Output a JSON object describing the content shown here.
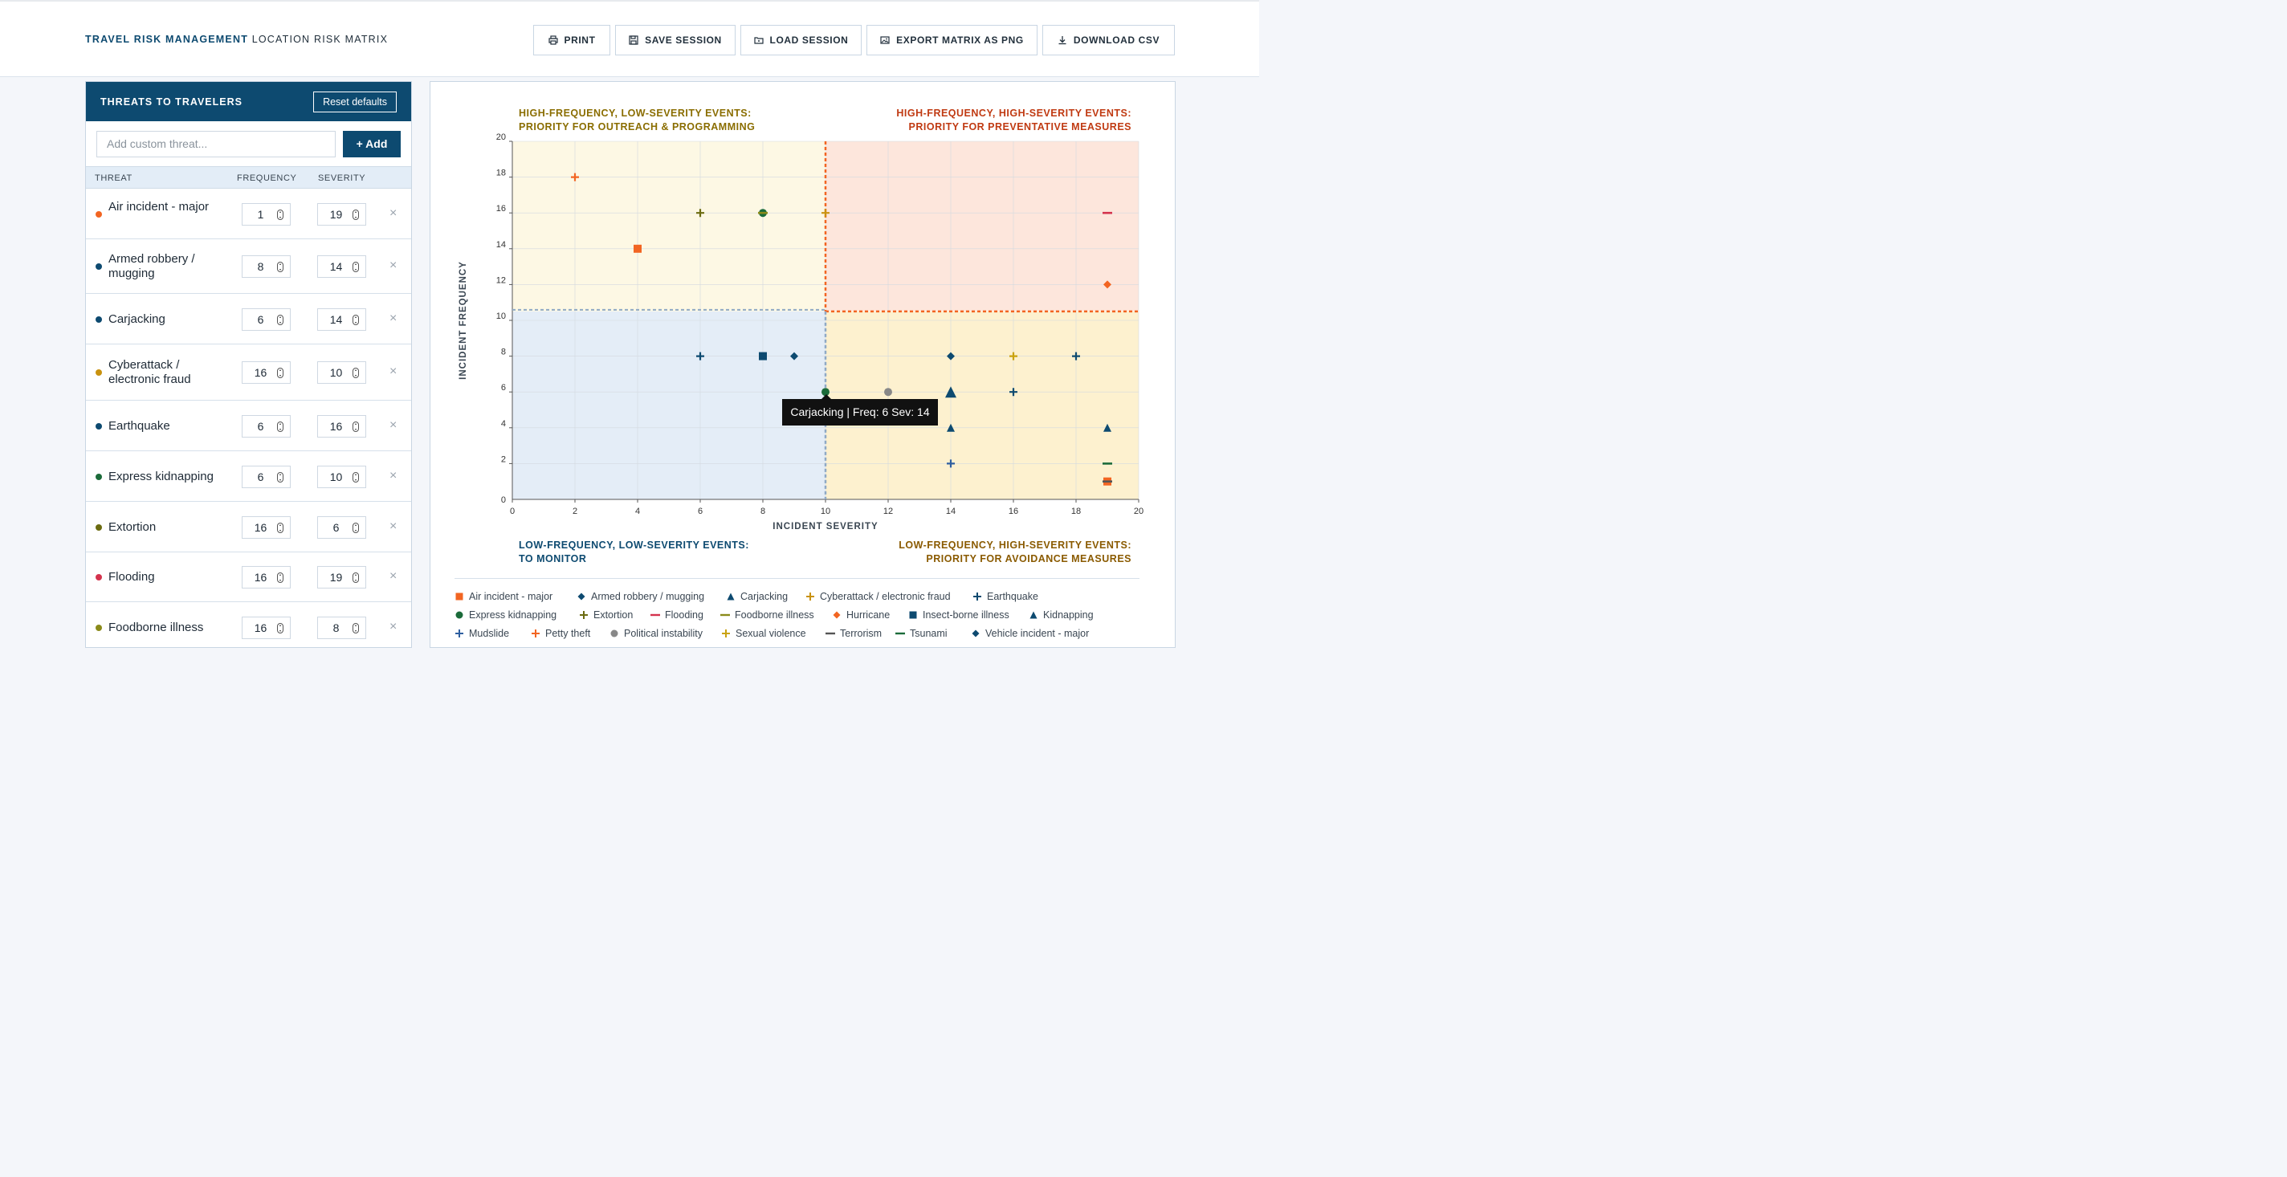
{
  "header": {
    "brand_bold": "TRAVEL RISK MANAGEMENT",
    "brand_rest": "LOCATION RISK MATRIX",
    "buttons": [
      {
        "label": "PRINT",
        "icon": "printer-icon"
      },
      {
        "label": "SAVE SESSION",
        "icon": "floppy-disk-icon"
      },
      {
        "label": "LOAD SESSION",
        "icon": "folder-open-icon"
      },
      {
        "label": "EXPORT MATRIX AS PNG",
        "icon": "image-icon"
      },
      {
        "label": "DOWNLOAD CSV",
        "icon": "download-icon"
      }
    ]
  },
  "sidebar": {
    "title": "THREATS TO TRAVELERS",
    "reset_label": "Reset defaults",
    "add_placeholder": "Add custom threat...",
    "add_label": "+ Add",
    "columns": {
      "threat": "THREAT",
      "frequency": "FREQUENCY",
      "severity": "SEVERITY"
    },
    "remove_glyph": "×",
    "threats": [
      {
        "name": "Air incident - major",
        "frequency": "1",
        "severity": "19",
        "color": "#f26522"
      },
      {
        "name": "Armed robbery / mugging",
        "frequency": "8",
        "severity": "14",
        "color": "#0d4a70"
      },
      {
        "name": "Carjacking",
        "frequency": "6",
        "severity": "14",
        "color": "#0d4a70"
      },
      {
        "name": "Cyberattack / electronic fraud",
        "frequency": "16",
        "severity": "10",
        "color": "#c9920f"
      },
      {
        "name": "Earthquake",
        "frequency": "6",
        "severity": "16",
        "color": "#0d4a70"
      },
      {
        "name": "Express kidnapping",
        "frequency": "6",
        "severity": "10",
        "color": "#1b6b3a"
      },
      {
        "name": "Extortion",
        "frequency": "16",
        "severity": "6",
        "color": "#6b6b10"
      },
      {
        "name": "Flooding",
        "frequency": "16",
        "severity": "19",
        "color": "#d4334d"
      },
      {
        "name": "Foodborne illness",
        "frequency": "16",
        "severity": "8",
        "color": "#8a8a1a"
      }
    ]
  },
  "matrix": {
    "quadrants": {
      "top_left": [
        "HIGH-FREQUENCY, LOW-SEVERITY EVENTS:",
        "PRIORITY FOR OUTREACH & PROGRAMMING"
      ],
      "top_right": [
        "HIGH-FREQUENCY, HIGH-SEVERITY EVENTS:",
        "PRIORITY FOR PREVENTATIVE MEASURES"
      ],
      "bottom_left": [
        "LOW-FREQUENCY, LOW-SEVERITY EVENTS:",
        "TO MONITOR"
      ],
      "bottom_right": [
        "LOW-FREQUENCY, HIGH-SEVERITY EVENTS:",
        "PRIORITY FOR AVOIDANCE MEASURES"
      ]
    },
    "quadrant_colors": {
      "top_left": "#8a6d00",
      "top_right": "#c03a12",
      "bottom_left": "#0d4a70",
      "bottom_right": "#8a5a00"
    },
    "tooltip": "Carjacking | Freq: 6 Sev: 14"
  },
  "chart_data": {
    "type": "scatter",
    "xlabel": "INCIDENT SEVERITY",
    "ylabel": "INCIDENT FREQUENCY",
    "xlim": [
      0,
      20
    ],
    "ylim": [
      0,
      20
    ],
    "x_ticks": [
      "0",
      "2",
      "4",
      "6",
      "8",
      "10",
      "12",
      "14",
      "16",
      "18",
      "20"
    ],
    "y_ticks": [
      "0",
      "2",
      "4",
      "6",
      "8",
      "10",
      "12",
      "14",
      "16",
      "18",
      "20"
    ],
    "divider": {
      "x": 10,
      "y": 10.5
    },
    "grid": true,
    "series": [
      {
        "name": "Air incident - major",
        "symbol": "square",
        "color": "#f26522",
        "x": 19,
        "y": 1
      },
      {
        "name": "Armed robbery / mugging",
        "symbol": "diamond",
        "color": "#0d4a70",
        "x": 14,
        "y": 8
      },
      {
        "name": "Carjacking",
        "symbol": "triangle",
        "color": "#0d4a70",
        "x": 14,
        "y": 6
      },
      {
        "name": "Cyberattack / electronic fraud",
        "symbol": "plus",
        "color": "#c9920f",
        "x": 10,
        "y": 16
      },
      {
        "name": "Earthquake",
        "symbol": "plus",
        "color": "#0d4a70",
        "x": 16,
        "y": 6
      },
      {
        "name": "Express kidnapping",
        "symbol": "circle",
        "color": "#1b6b3a",
        "x": 10,
        "y": 6
      },
      {
        "name": "Extortion",
        "symbol": "plus",
        "color": "#6b6b10",
        "x": 6,
        "y": 16
      },
      {
        "name": "Flooding",
        "symbol": "dash",
        "color": "#d4334d",
        "x": 19,
        "y": 16
      },
      {
        "name": "Foodborne illness",
        "symbol": "dash",
        "color": "#8a8a1a",
        "x": 8,
        "y": 16
      },
      {
        "name": "Hurricane",
        "symbol": "diamond",
        "color": "#f26522",
        "x": 19,
        "y": 12
      },
      {
        "name": "Insect-borne illness",
        "symbol": "square",
        "color": "#0d4a70",
        "x": 8,
        "y": 8
      },
      {
        "name": "Kidnapping",
        "symbol": "triangle",
        "color": "#0d4a70",
        "x": 14,
        "y": 4
      },
      {
        "name": "Mudslide",
        "symbol": "plus",
        "color": "#2f5fa0",
        "x": 14,
        "y": 2
      },
      {
        "name": "Petty theft",
        "symbol": "plus",
        "color": "#f26522",
        "x": 2,
        "y": 18
      },
      {
        "name": "Political instability",
        "symbol": "circle",
        "color": "#888888",
        "x": 12,
        "y": 6
      },
      {
        "name": "Sexual violence",
        "symbol": "plus",
        "color": "#c9a20f",
        "x": 16,
        "y": 8
      },
      {
        "name": "Terrorism",
        "symbol": "dash",
        "color": "#555555",
        "x": 19,
        "y": 1
      },
      {
        "name": "Tsunami",
        "symbol": "dash",
        "color": "#1b6b3a",
        "x": 19,
        "y": 2
      },
      {
        "name": "Vehicle incident - major",
        "symbol": "diamond",
        "color": "#0d4a70",
        "x": 9,
        "y": 8
      }
    ],
    "extra_points": [
      {
        "symbol": "square",
        "color": "#f26522",
        "x": 4,
        "y": 14
      },
      {
        "symbol": "circle",
        "color": "#1b6b3a",
        "x": 8,
        "y": 16
      },
      {
        "symbol": "plus",
        "color": "#0d4a70",
        "x": 6,
        "y": 8
      },
      {
        "symbol": "plus",
        "color": "#0d4a70",
        "x": 18,
        "y": 8
      },
      {
        "symbol": "triangle",
        "color": "#0d4a70",
        "x": 19,
        "y": 4
      }
    ]
  }
}
